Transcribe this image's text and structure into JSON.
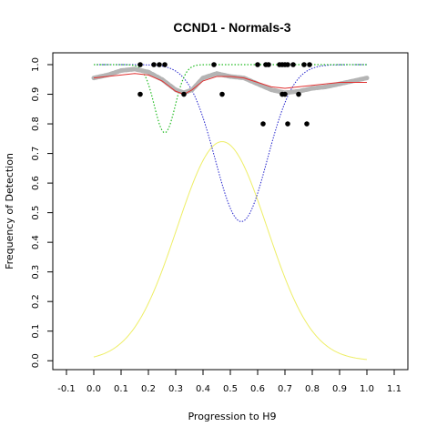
{
  "chart_data": {
    "type": "scatter",
    "title": "CCND1 - Normals-3",
    "xlabel": "Progression to H9",
    "ylabel": "Frequency of Detection",
    "xlim": [
      -0.15,
      1.15
    ],
    "ylim": [
      -0.03,
      1.04
    ],
    "x_ticks": [
      -0.1,
      0.0,
      0.1,
      0.2,
      0.3,
      0.4,
      0.5,
      0.6,
      0.7,
      0.8,
      0.9,
      1.0,
      1.1
    ],
    "x_tick_labels": [
      "-0.1",
      "0.0",
      "0.1",
      "0.2",
      "0.3",
      "0.4",
      "0.5",
      "0.6",
      "0.7",
      "0.8",
      "0.9",
      "1.0",
      "1.1"
    ],
    "y_ticks": [
      0.0,
      0.1,
      0.2,
      0.3,
      0.4,
      0.5,
      0.6,
      0.7,
      0.8,
      0.9,
      1.0
    ],
    "y_tick_labels": [
      "0.0",
      "0.1",
      "0.2",
      "0.3",
      "0.4",
      "0.5",
      "0.6",
      "0.7",
      "0.8",
      "0.9",
      "1.0"
    ],
    "grid": false,
    "colors": {
      "points": "#000000",
      "smoothed": "#b4b4b4",
      "fit": "#e03030",
      "green_curve": "#22bb22",
      "blue_curve": "#2222cc",
      "yellow_curve": "#eeee66"
    },
    "points": [
      {
        "x": 0.17,
        "y": 1.0
      },
      {
        "x": 0.22,
        "y": 1.0
      },
      {
        "x": 0.24,
        "y": 1.0
      },
      {
        "x": 0.26,
        "y": 1.0
      },
      {
        "x": 0.44,
        "y": 1.0
      },
      {
        "x": 0.6,
        "y": 1.0
      },
      {
        "x": 0.63,
        "y": 1.0
      },
      {
        "x": 0.64,
        "y": 1.0
      },
      {
        "x": 0.68,
        "y": 1.0
      },
      {
        "x": 0.69,
        "y": 1.0
      },
      {
        "x": 0.7,
        "y": 1.0
      },
      {
        "x": 0.71,
        "y": 1.0
      },
      {
        "x": 0.73,
        "y": 1.0
      },
      {
        "x": 0.77,
        "y": 1.0
      },
      {
        "x": 0.79,
        "y": 1.0
      },
      {
        "x": 0.17,
        "y": 0.9
      },
      {
        "x": 0.33,
        "y": 0.9
      },
      {
        "x": 0.47,
        "y": 0.9
      },
      {
        "x": 0.69,
        "y": 0.9
      },
      {
        "x": 0.7,
        "y": 0.9
      },
      {
        "x": 0.75,
        "y": 0.9
      },
      {
        "x": 0.62,
        "y": 0.8
      },
      {
        "x": 0.71,
        "y": 0.8
      },
      {
        "x": 0.78,
        "y": 0.8
      }
    ],
    "smoothed": {
      "x": [
        0.0,
        0.05,
        0.1,
        0.15,
        0.2,
        0.25,
        0.3,
        0.33,
        0.36,
        0.4,
        0.45,
        0.5,
        0.55,
        0.6,
        0.65,
        0.7,
        0.75,
        0.8,
        0.85,
        0.9,
        0.95,
        1.0
      ],
      "y": [
        0.955,
        0.965,
        0.98,
        0.985,
        0.975,
        0.95,
        0.915,
        0.905,
        0.915,
        0.955,
        0.97,
        0.96,
        0.955,
        0.935,
        0.915,
        0.905,
        0.91,
        0.92,
        0.925,
        0.935,
        0.945,
        0.955
      ]
    },
    "fit_line": {
      "x": [
        0.0,
        0.05,
        0.1,
        0.15,
        0.2,
        0.25,
        0.3,
        0.33,
        0.36,
        0.4,
        0.45,
        0.5,
        0.55,
        0.6,
        0.65,
        0.7,
        0.75,
        0.8,
        0.85,
        0.9,
        0.95,
        1.0
      ],
      "y": [
        0.955,
        0.96,
        0.965,
        0.97,
        0.965,
        0.945,
        0.91,
        0.9,
        0.915,
        0.945,
        0.96,
        0.96,
        0.955,
        0.94,
        0.925,
        0.92,
        0.925,
        0.93,
        0.935,
        0.94,
        0.94,
        0.94
      ]
    },
    "green_curve": {
      "baseline": 1.0,
      "depth": 0.23,
      "center": 0.26,
      "width": 0.038,
      "x_range": [
        0.0,
        1.0
      ]
    },
    "blue_curve": {
      "baseline": 1.0,
      "depth": 0.53,
      "center": 0.54,
      "width": 0.095,
      "x_range": [
        0.0,
        1.0
      ]
    },
    "yellow_curve": {
      "peak": 0.74,
      "center": 0.47,
      "width": 0.165,
      "x_range": [
        0.0,
        1.0
      ]
    }
  }
}
